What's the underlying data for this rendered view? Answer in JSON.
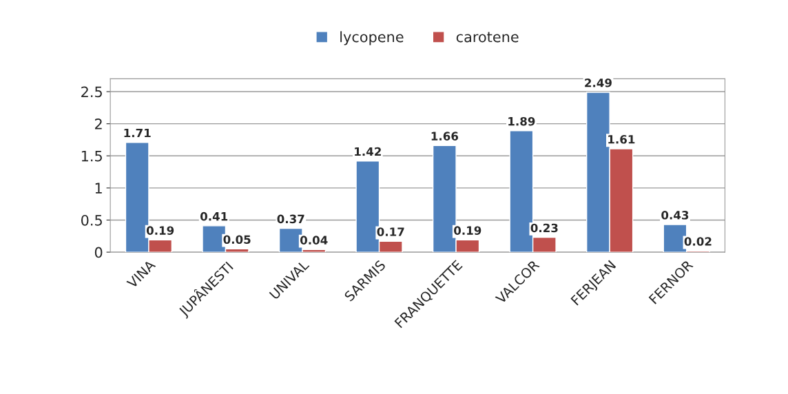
{
  "chart_data": {
    "type": "bar",
    "categories": [
      "VINA",
      "JUPÂNESTI",
      "UNIVAL",
      "SARMIS",
      "FRANQUETTE",
      "VALCOR",
      "FERJEAN",
      "FERNOR"
    ],
    "series": [
      {
        "name": "lycopene",
        "color": "#4f81bd",
        "values": [
          1.71,
          0.41,
          0.37,
          1.42,
          1.66,
          1.89,
          2.49,
          0.43
        ]
      },
      {
        "name": "carotene",
        "color": "#c0504d",
        "values": [
          0.19,
          0.05,
          0.04,
          0.17,
          0.19,
          0.23,
          1.61,
          0.02
        ]
      }
    ],
    "ylim": [
      0,
      2.7
    ],
    "yticks": [
      0,
      0.5,
      1,
      1.5,
      2,
      2.5
    ],
    "grid": "y",
    "legend": "top",
    "data_labels": true
  }
}
